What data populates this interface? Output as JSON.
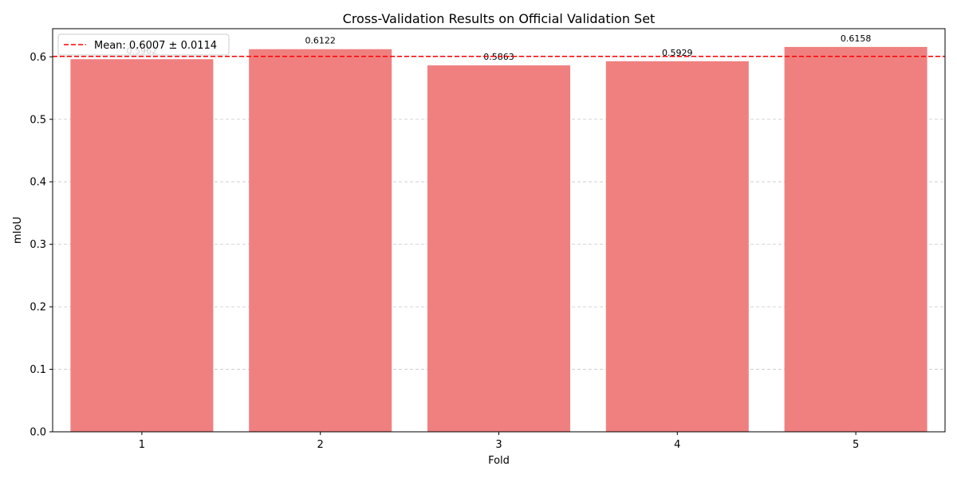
{
  "chart_data": {
    "type": "bar",
    "title": "Cross-Validation Results on Official Validation Set",
    "xlabel": "Fold",
    "ylabel": "mIoU",
    "categories": [
      "1",
      "2",
      "3",
      "4",
      "5"
    ],
    "values": [
      0.5962,
      0.6122,
      0.5863,
      0.5929,
      0.6158
    ],
    "data_labels": [
      "0.5962",
      "0.6122",
      "0.5863",
      "0.5929",
      "0.6158"
    ],
    "ylim": [
      0,
      0.645
    ],
    "yticks": [
      0.0,
      0.1,
      0.2,
      0.3,
      0.4,
      0.5,
      0.6
    ],
    "ytick_labels": [
      "0.0",
      "0.1",
      "0.2",
      "0.3",
      "0.4",
      "0.5",
      "0.6"
    ],
    "grid": {
      "axis": "y",
      "style": "dashed"
    },
    "mean_line": {
      "value": 0.6007,
      "label": "Mean: 0.6007 ± 0.0114",
      "color": "#ff0000",
      "style": "dashed"
    },
    "bar_color": "#f08080",
    "legend": {
      "position": "top-left"
    }
  }
}
